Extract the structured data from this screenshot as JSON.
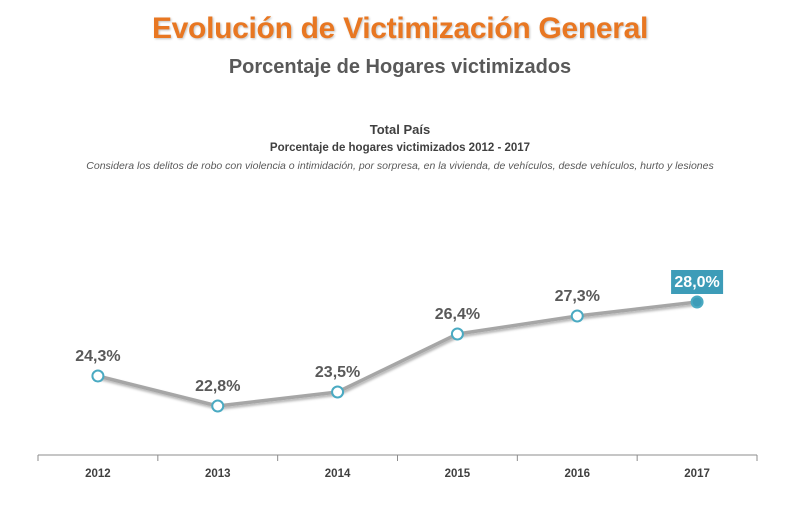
{
  "header": {
    "title": "Evolución de Victimización General",
    "subtitle": "Porcentaje de Hogares victimizados"
  },
  "colors": {
    "title": "#e87722",
    "line": "#a6a6a6",
    "marker_fill": "#ffffff",
    "marker_stroke": "#4aaac2",
    "highlight": "#3d9cb8",
    "label_text": "#595959",
    "axis": "#8c8c8c"
  },
  "chart_data": {
    "type": "line",
    "title": "Total País",
    "subtitle": "Porcentaje de hogares victimizados 2012 - 2017",
    "note": "Considera los delitos de robo con violencia o intimidación, por sorpresa, en la vivienda, de vehículos, desde vehículos, hurto y lesiones",
    "categories": [
      "2012",
      "2013",
      "2014",
      "2015",
      "2016",
      "2017"
    ],
    "values": [
      24.3,
      22.8,
      23.5,
      26.4,
      27.3,
      28.0
    ],
    "data_labels": [
      "24,3%",
      "22,8%",
      "23,5%",
      "26,4%",
      "27,3%",
      "28,0%"
    ],
    "highlighted_index": 5,
    "xlabel": "",
    "ylabel": "",
    "grid": false
  }
}
